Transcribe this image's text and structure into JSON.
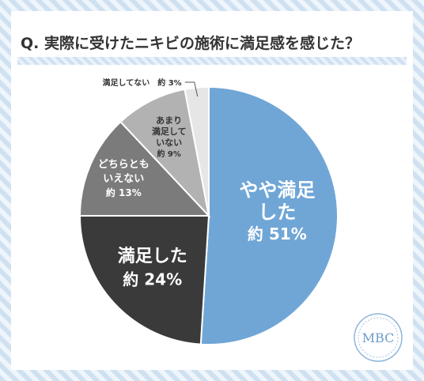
{
  "title": "Q. 実際に受けたニキビの施術に満足感を感じた？",
  "logo_text": "MBC",
  "colors": {
    "accent": "#6fa6d6",
    "slice_satisfied_somewhat": "#6fa6d6",
    "slice_satisfied": "#3a3a3a",
    "slice_neutral": "#7b7b7b",
    "slice_not_very": "#b2b2b2",
    "slice_not": "#e6e6e6"
  },
  "chart_data": {
    "type": "pie",
    "title": "Q. 実際に受けたニキビの施術に満足感を感じた？",
    "slices": [
      {
        "name": "やや満足した",
        "value": 51,
        "label_lines": [
          "やや満足",
          "した"
        ],
        "value_label": "約 51%"
      },
      {
        "name": "満足した",
        "value": 24,
        "label_lines": [
          "満足した"
        ],
        "value_label": "約 24%"
      },
      {
        "name": "どちらともいえない",
        "value": 13,
        "label_lines": [
          "どちらとも",
          "いえない"
        ],
        "value_label": "約 13%"
      },
      {
        "name": "あまり満足していない",
        "value": 9,
        "label_lines": [
          "あまり",
          "満足して",
          "いない"
        ],
        "value_label": "約 9%"
      },
      {
        "name": "満足してない",
        "value": 3,
        "label_lines": [
          "満足してない"
        ],
        "value_label": "約 3%"
      }
    ]
  }
}
